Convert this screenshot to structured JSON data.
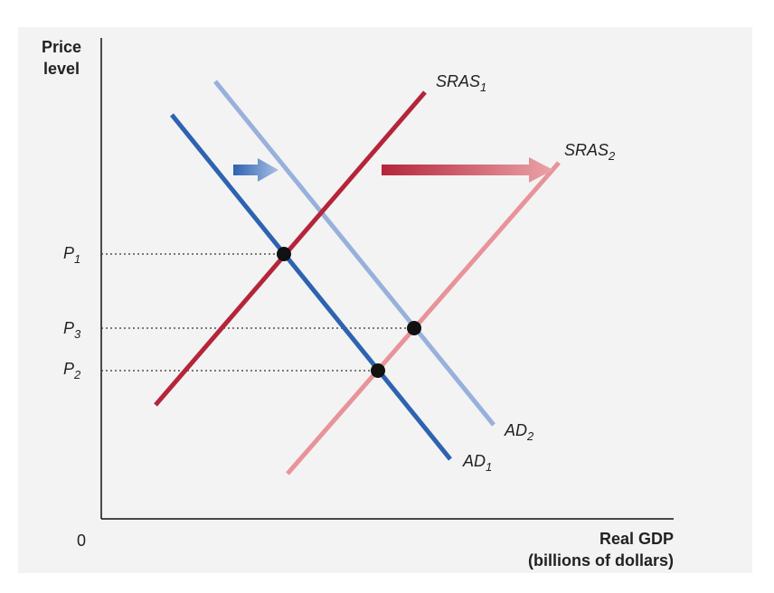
{
  "axes": {
    "y_label": [
      "Price",
      "level"
    ],
    "origin": "0",
    "x_label": [
      "Real GDP",
      "(billions of dollars)"
    ]
  },
  "curves": {
    "sras1": {
      "base": "SRAS",
      "sub": "1"
    },
    "sras2": {
      "base": "SRAS",
      "sub": "2"
    },
    "ad1": {
      "base": "AD",
      "sub": "1"
    },
    "ad2": {
      "base": "AD",
      "sub": "2"
    }
  },
  "price_levels": {
    "p1": {
      "base": "P",
      "sub": "1"
    },
    "p3": {
      "base": "P",
      "sub": "3"
    },
    "p2": {
      "base": "P",
      "sub": "2"
    }
  }
}
